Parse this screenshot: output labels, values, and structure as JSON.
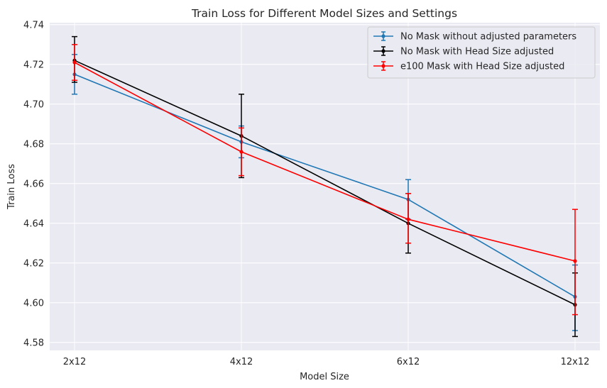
{
  "chart_data": {
    "type": "line",
    "title": "Train Loss for Different Model Sizes and Settings",
    "xlabel": "Model Size",
    "ylabel": "Train Loss",
    "categories": [
      "2x12",
      "4x12",
      "6x12",
      "12x12"
    ],
    "ylim": [
      4.576,
      4.741
    ],
    "yticks": [
      4.58,
      4.6,
      4.62,
      4.64,
      4.66,
      4.68,
      4.7,
      4.72,
      4.74
    ],
    "ytick_labels": [
      "4.58",
      "4.60",
      "4.62",
      "4.64",
      "4.66",
      "4.68",
      "4.70",
      "4.72",
      "4.74"
    ],
    "grid": true,
    "legend_position": "top-right",
    "series": [
      {
        "name": "No Mask without adjusted parameters",
        "color": "#1f77b4",
        "values": [
          4.715,
          4.681,
          4.652,
          4.603
        ],
        "err_low": [
          4.705,
          4.673,
          4.642,
          4.586
        ],
        "err_high": [
          4.725,
          4.689,
          4.662,
          4.619
        ]
      },
      {
        "name": "No Mask with Head Size adjusted",
        "color": "#000000",
        "values": [
          4.722,
          4.684,
          4.64,
          4.599
        ],
        "err_low": [
          4.711,
          4.663,
          4.625,
          4.583
        ],
        "err_high": [
          4.734,
          4.705,
          4.655,
          4.615
        ]
      },
      {
        "name": "e100 Mask with Head Size adjusted",
        "color": "#ff0000",
        "values": [
          4.721,
          4.676,
          4.642,
          4.621
        ],
        "err_low": [
          4.712,
          4.664,
          4.63,
          4.594
        ],
        "err_high": [
          4.73,
          4.688,
          4.655,
          4.647
        ]
      }
    ]
  }
}
